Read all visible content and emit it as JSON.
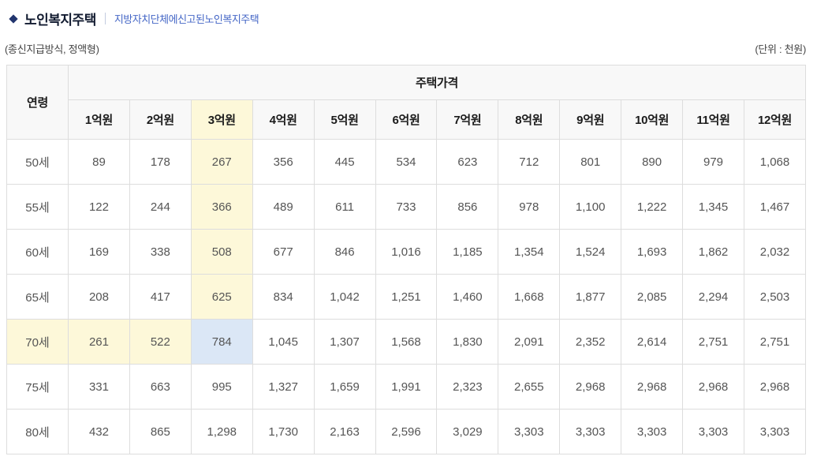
{
  "page_header": {
    "title": "노인복지주택",
    "subtitle": "지방자치단체에신고된노인복지주택"
  },
  "notes": {
    "left": "(종신지급방식, 정액형)",
    "right": "(단위 : 천원)"
  },
  "chart_data": {
    "type": "table",
    "title": "노인복지주택",
    "corner_header": "연령",
    "group_header": "주택가격",
    "price_columns": [
      "1억원",
      "2억원",
      "3억원",
      "4억원",
      "5억원",
      "6억원",
      "7억원",
      "8억원",
      "9억원",
      "10억원",
      "11억원",
      "12억원"
    ],
    "rows": [
      {
        "age": "50세",
        "values": [
          "89",
          "178",
          "267",
          "356",
          "445",
          "534",
          "623",
          "712",
          "801",
          "890",
          "979",
          "1,068"
        ]
      },
      {
        "age": "55세",
        "values": [
          "122",
          "244",
          "366",
          "489",
          "611",
          "733",
          "856",
          "978",
          "1,100",
          "1,222",
          "1,345",
          "1,467"
        ]
      },
      {
        "age": "60세",
        "values": [
          "169",
          "338",
          "508",
          "677",
          "846",
          "1,016",
          "1,185",
          "1,354",
          "1,524",
          "1,693",
          "1,862",
          "2,032"
        ]
      },
      {
        "age": "65세",
        "values": [
          "208",
          "417",
          "625",
          "834",
          "1,042",
          "1,251",
          "1,460",
          "1,668",
          "1,877",
          "2,085",
          "2,294",
          "2,503"
        ]
      },
      {
        "age": "70세",
        "values": [
          "261",
          "522",
          "784",
          "1,045",
          "1,307",
          "1,568",
          "1,830",
          "2,091",
          "2,352",
          "2,614",
          "2,751",
          "2,751"
        ]
      },
      {
        "age": "75세",
        "values": [
          "331",
          "663",
          "995",
          "1,327",
          "1,659",
          "1,991",
          "2,323",
          "2,655",
          "2,968",
          "2,968",
          "2,968",
          "2,968"
        ]
      },
      {
        "age": "80세",
        "values": [
          "432",
          "865",
          "1,298",
          "1,730",
          "2,163",
          "2,596",
          "3,029",
          "3,303",
          "3,303",
          "3,303",
          "3,303",
          "3,303"
        ]
      }
    ],
    "highlight": {
      "focus_column": "3억원",
      "focus_row": "70세",
      "focus_col_index": 2,
      "focus_row_index": 4,
      "trail_color": "#fdf8d9",
      "intersection_color": "#dbe7f6"
    }
  },
  "colors": {
    "accent": "#22356e",
    "title_text": "#121b30",
    "subtitle_text": "#4466c6",
    "header_bg": "#f8f8f8",
    "border": "#dddddd",
    "body_text": "#555555"
  }
}
